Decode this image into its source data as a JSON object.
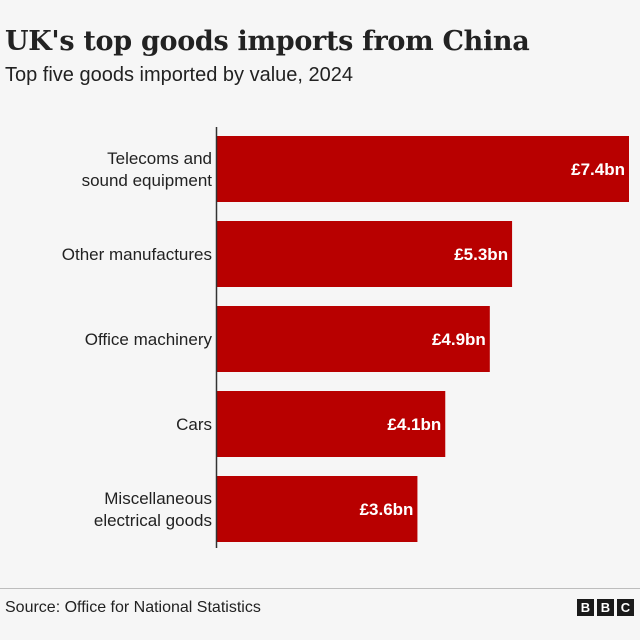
{
  "header": {
    "title": "UK's top goods imports from China",
    "subtitle": "Top five goods imported by value, 2024"
  },
  "chart_data": {
    "type": "bar",
    "orientation": "horizontal",
    "categories": [
      "Telecoms and sound equipment",
      "Other manufactures",
      "Office machinery",
      "Cars",
      "Miscellaneous electrical goods"
    ],
    "values": [
      7.4,
      5.3,
      4.9,
      4.1,
      3.6
    ],
    "value_labels": [
      "£7.4bn",
      "£5.3bn",
      "£4.9bn",
      "£4.1bn",
      "£3.6bn"
    ],
    "title": "UK's top goods imports from China",
    "subtitle": "Top five goods imported by value, 2024",
    "xlabel": "",
    "ylabel": "",
    "grid": false,
    "colors": {
      "bar": "#b80000"
    }
  },
  "footer": {
    "source": "Source: Office for National Statistics",
    "logo": [
      "B",
      "B",
      "C"
    ]
  }
}
